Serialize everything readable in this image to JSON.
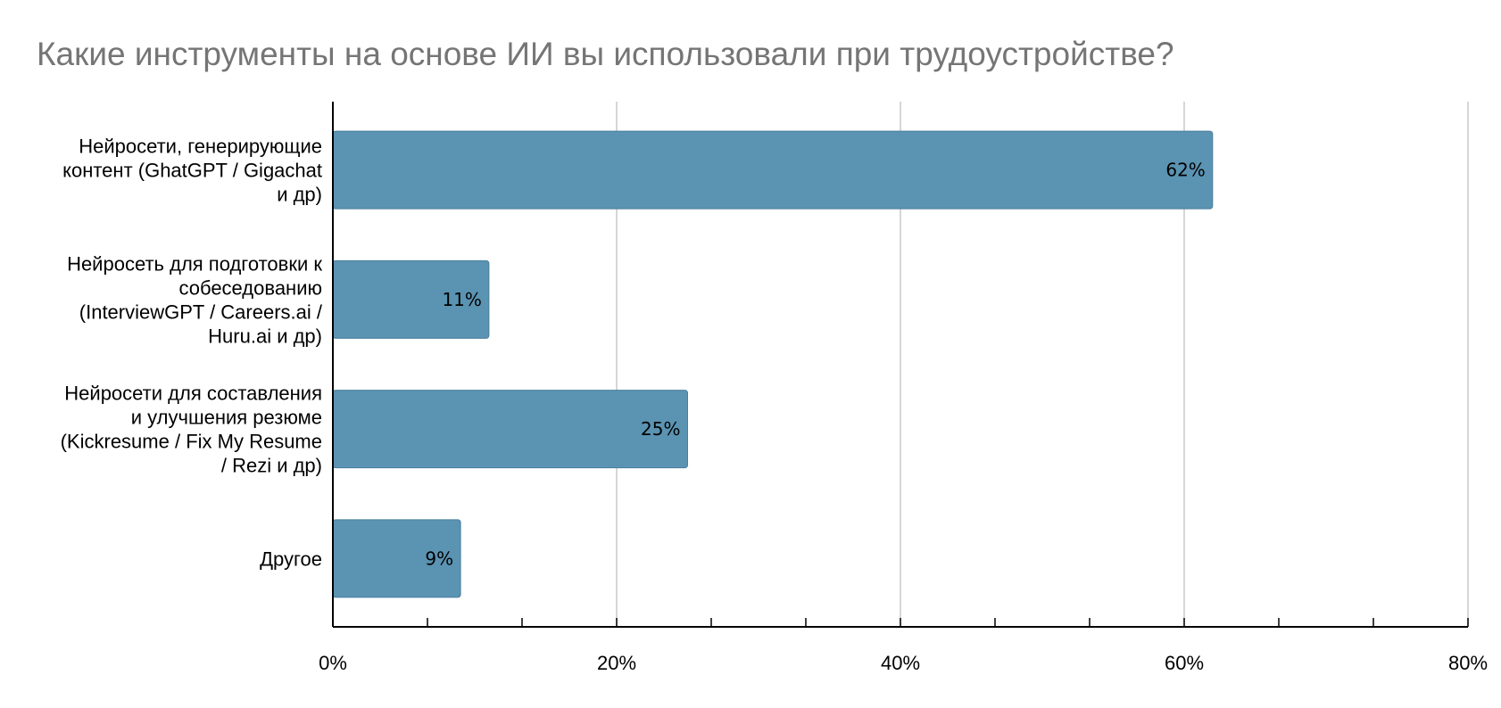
{
  "chart_data": {
    "type": "bar",
    "orientation": "horizontal",
    "title": "Какие инструменты на основе ИИ вы использовали при трудоустройстве?",
    "categories": [
      [
        "Нейросети, генерирующие",
        "контент (GhatGPT / Gigachat",
        "и др)"
      ],
      [
        "Нейросеть для подготовки к",
        "собеседованию",
        "(InterviewGPT / Careers.ai /",
        "Huru.ai и др)"
      ],
      [
        "Нейросети для составления",
        "и улучшения резюме",
        "(Kickresume / Fix My Resume",
        "/ Rezi и др)"
      ],
      [
        "Другое"
      ]
    ],
    "values": [
      62,
      11,
      25,
      9
    ],
    "data_labels": [
      "62%",
      "11%",
      "25%",
      "9%"
    ],
    "xlim": [
      0,
      80
    ],
    "x_ticks": [
      0,
      20,
      40,
      60,
      80
    ],
    "x_tick_labels": [
      "0%",
      "20%",
      "40%",
      "60%",
      "80%"
    ],
    "grid": true,
    "bar_color": "#5b93b2",
    "bar_edge_color": "#4a7f9c",
    "grid_color": "#c8c8c8",
    "title_color": "#757575"
  }
}
